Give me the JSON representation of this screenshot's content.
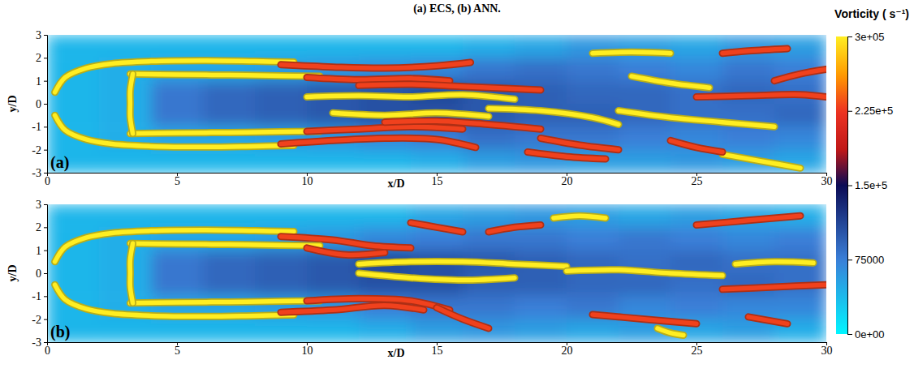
{
  "title": "(a) ECS, (b) ANN.",
  "colorbar": {
    "title": "Vorticity ( s⁻¹)",
    "range": [
      0,
      300000
    ],
    "ticks": [
      {
        "value": 300000,
        "label": "3e+05"
      },
      {
        "value": 225000,
        "label": "2.25e+5"
      },
      {
        "value": 150000,
        "label": "1.5e+5"
      },
      75000,
      {
        "value": 0,
        "label": "0e+00"
      }
    ]
  },
  "chart_data": [
    {
      "type": "heatmap",
      "panel_label": "(a)",
      "x_label": "x/D",
      "y_label": "y/D",
      "xlim": [
        0,
        30
      ],
      "ylim": [
        -3,
        3
      ],
      "xticks": [
        0,
        5,
        10,
        15,
        20,
        25,
        30
      ],
      "yticks": [
        -3,
        -2,
        -1,
        0,
        1,
        2,
        3
      ],
      "x_edges": [
        0,
        2,
        4,
        6,
        8,
        10,
        12,
        14,
        16,
        18,
        20,
        22,
        24,
        26,
        28,
        30
      ],
      "y_edges": [
        3,
        2,
        1,
        0,
        -1,
        -2,
        -3
      ],
      "cells": [
        [
          40000,
          40000,
          40000,
          40000,
          40000,
          40000,
          40000,
          40000,
          45000,
          50000,
          60000,
          55000,
          50000,
          60000,
          55000
        ],
        [
          40000,
          45000,
          50000,
          50000,
          55000,
          60000,
          65000,
          70000,
          80000,
          85000,
          80000,
          75000,
          70000,
          80000,
          75000
        ],
        [
          40000,
          45000,
          80000,
          90000,
          95000,
          100000,
          105000,
          110000,
          100000,
          95000,
          90000,
          90000,
          85000,
          90000,
          85000
        ],
        [
          40000,
          45000,
          80000,
          90000,
          95000,
          100000,
          105000,
          105000,
          100000,
          95000,
          95000,
          90000,
          85000,
          85000,
          90000
        ],
        [
          40000,
          45000,
          50000,
          50000,
          55000,
          60000,
          70000,
          75000,
          85000,
          80000,
          80000,
          75000,
          70000,
          75000,
          70000
        ],
        [
          40000,
          40000,
          40000,
          40000,
          40000,
          40000,
          40000,
          45000,
          55000,
          60000,
          55000,
          55000,
          60000,
          55000,
          50000
        ]
      ],
      "streaks": [
        {
          "value": 300000,
          "x": [
            0.3,
            0.7,
            1.5,
            2.5,
            4,
            6,
            8,
            9.5
          ],
          "y": [
            0.5,
            1.15,
            1.55,
            1.75,
            1.85,
            1.88,
            1.85,
            1.82
          ]
        },
        {
          "value": 300000,
          "x": [
            0.3,
            0.7,
            1.5,
            2.5,
            4,
            6,
            8,
            9.5
          ],
          "y": [
            -0.5,
            -1.15,
            -1.55,
            -1.75,
            -1.85,
            -1.88,
            -1.85,
            -1.82
          ]
        },
        {
          "value": 230000,
          "x": [
            9,
            11,
            13,
            15,
            16.3
          ],
          "y": [
            1.7,
            1.6,
            1.55,
            1.65,
            1.8
          ]
        },
        {
          "value": 230000,
          "x": [
            9,
            11,
            13,
            15,
            16.5
          ],
          "y": [
            -1.75,
            -1.6,
            -1.5,
            -1.55,
            -1.9
          ]
        },
        {
          "value": 300000,
          "x": [
            3.2,
            5,
            7,
            9,
            10.5
          ],
          "y": [
            1.3,
            1.27,
            1.25,
            1.22,
            1.2
          ]
        },
        {
          "value": 300000,
          "x": [
            3.2,
            5,
            7,
            9,
            10.5
          ],
          "y": [
            -1.3,
            -1.27,
            -1.25,
            -1.22,
            -1.2
          ]
        },
        {
          "value": 300000,
          "x": [
            3.3,
            3.2,
            3.2,
            3.2,
            3.3
          ],
          "y": [
            1.3,
            0.6,
            0,
            -0.6,
            -1.3
          ]
        },
        {
          "value": 230000,
          "x": [
            10,
            12,
            14,
            15.5
          ],
          "y": [
            1.15,
            1.05,
            1.1,
            1.0
          ]
        },
        {
          "value": 230000,
          "x": [
            10,
            12,
            14,
            16
          ],
          "y": [
            -1.2,
            -1.1,
            -1.0,
            -1.1
          ]
        },
        {
          "value": 300000,
          "x": [
            10,
            12,
            14,
            16,
            18
          ],
          "y": [
            0.3,
            0.35,
            0.3,
            0.4,
            0.2
          ]
        },
        {
          "value": 300000,
          "x": [
            11,
            13,
            15,
            17
          ],
          "y": [
            -0.4,
            -0.5,
            -0.4,
            -0.55
          ]
        },
        {
          "value": 230000,
          "x": [
            12,
            14,
            16,
            19
          ],
          "y": [
            0.8,
            0.85,
            0.75,
            0.6
          ]
        },
        {
          "value": 230000,
          "x": [
            13,
            15,
            17,
            19
          ],
          "y": [
            -0.8,
            -0.75,
            -0.9,
            -1.1
          ]
        },
        {
          "value": 300000,
          "x": [
            17,
            19,
            21,
            22
          ],
          "y": [
            -0.2,
            -0.3,
            -0.6,
            -0.9
          ]
        },
        {
          "value": 230000,
          "x": [
            18.5,
            20,
            21.5
          ],
          "y": [
            -2.1,
            -2.3,
            -2.4
          ]
        },
        {
          "value": 230000,
          "x": [
            19,
            20.5,
            22
          ],
          "y": [
            -1.5,
            -1.8,
            -2.0
          ]
        },
        {
          "value": 300000,
          "x": [
            21,
            22.5,
            24
          ],
          "y": [
            2.2,
            2.25,
            2.2
          ]
        },
        {
          "value": 230000,
          "x": [
            26,
            27,
            28.5
          ],
          "y": [
            2.2,
            2.3,
            2.4
          ]
        },
        {
          "value": 300000,
          "x": [
            22,
            24,
            26,
            28
          ],
          "y": [
            -0.3,
            -0.6,
            -0.8,
            -1.0
          ]
        },
        {
          "value": 230000,
          "x": [
            25,
            27,
            29,
            30
          ],
          "y": [
            0.3,
            0.35,
            0.4,
            0.3
          ]
        },
        {
          "value": 300000,
          "x": [
            26,
            27.5,
            29
          ],
          "y": [
            -2.2,
            -2.5,
            -2.8
          ]
        },
        {
          "value": 230000,
          "x": [
            24,
            25,
            26
          ],
          "y": [
            -1.6,
            -1.9,
            -2.1
          ]
        },
        {
          "value": 300000,
          "x": [
            22.5,
            24,
            25.5
          ],
          "y": [
            1.2,
            0.9,
            0.7
          ]
        },
        {
          "value": 230000,
          "x": [
            28,
            29,
            30
          ],
          "y": [
            1.0,
            1.3,
            1.5
          ]
        }
      ]
    },
    {
      "type": "heatmap",
      "panel_label": "(b)",
      "x_label": "x/D",
      "y_label": "y/D",
      "xlim": [
        0,
        30
      ],
      "ylim": [
        -3,
        3
      ],
      "xticks": [
        0,
        5,
        10,
        15,
        20,
        25,
        30
      ],
      "yticks": [
        -3,
        -2,
        -1,
        0,
        1,
        2,
        3
      ],
      "x_edges": [
        0,
        2,
        4,
        6,
        8,
        10,
        12,
        14,
        16,
        18,
        20,
        22,
        24,
        26,
        28,
        30
      ],
      "y_edges": [
        3,
        2,
        1,
        0,
        -1,
        -2,
        -3
      ],
      "cells": [
        [
          40000,
          40000,
          40000,
          40000,
          40000,
          40000,
          40000,
          50000,
          55000,
          60000,
          55000,
          50000,
          55000,
          50000,
          45000
        ],
        [
          40000,
          45000,
          50000,
          50000,
          55000,
          60000,
          70000,
          75000,
          80000,
          80000,
          75000,
          80000,
          75000,
          70000,
          75000
        ],
        [
          40000,
          45000,
          80000,
          90000,
          95000,
          100000,
          110000,
          105000,
          100000,
          95000,
          90000,
          85000,
          90000,
          85000,
          85000
        ],
        [
          40000,
          45000,
          80000,
          90000,
          95000,
          100000,
          105000,
          105000,
          95000,
          95000,
          90000,
          90000,
          85000,
          90000,
          85000
        ],
        [
          40000,
          45000,
          50000,
          50000,
          55000,
          60000,
          75000,
          80000,
          80000,
          75000,
          80000,
          70000,
          75000,
          70000,
          70000
        ],
        [
          40000,
          40000,
          40000,
          40000,
          40000,
          40000,
          45000,
          55000,
          60000,
          55000,
          50000,
          55000,
          50000,
          55000,
          45000
        ]
      ],
      "streaks": [
        {
          "value": 300000,
          "x": [
            0.3,
            0.7,
            1.5,
            2.5,
            4,
            6,
            8,
            9.5
          ],
          "y": [
            0.5,
            1.15,
            1.55,
            1.75,
            1.85,
            1.88,
            1.85,
            1.82
          ]
        },
        {
          "value": 300000,
          "x": [
            0.3,
            0.7,
            1.5,
            2.5,
            4,
            6,
            8,
            9.5
          ],
          "y": [
            -0.5,
            -1.15,
            -1.55,
            -1.75,
            -1.85,
            -1.88,
            -1.85,
            -1.82
          ]
        },
        {
          "value": 230000,
          "x": [
            9,
            11,
            12.5,
            14
          ],
          "y": [
            1.6,
            1.45,
            1.2,
            1.1
          ]
        },
        {
          "value": 230000,
          "x": [
            9,
            11,
            13,
            14.5
          ],
          "y": [
            -1.7,
            -1.6,
            -1.4,
            -1.6
          ]
        },
        {
          "value": 300000,
          "x": [
            3.2,
            5,
            7,
            9,
            10.5
          ],
          "y": [
            1.3,
            1.27,
            1.25,
            1.22,
            1.2
          ]
        },
        {
          "value": 300000,
          "x": [
            3.2,
            5,
            7,
            9,
            10.5
          ],
          "y": [
            -1.3,
            -1.27,
            -1.25,
            -1.22,
            -1.2
          ]
        },
        {
          "value": 300000,
          "x": [
            3.3,
            3.2,
            3.2,
            3.2,
            3.3
          ],
          "y": [
            1.3,
            0.6,
            0,
            -0.6,
            -1.3
          ]
        },
        {
          "value": 230000,
          "x": [
            10,
            11.5,
            13
          ],
          "y": [
            1.1,
            0.8,
            0.9
          ]
        },
        {
          "value": 230000,
          "x": [
            10,
            12,
            14,
            15.5
          ],
          "y": [
            -1.2,
            -1.1,
            -1.2,
            -1.6
          ]
        },
        {
          "value": 300000,
          "x": [
            12,
            14,
            16,
            18,
            20
          ],
          "y": [
            0.4,
            0.5,
            0.5,
            0.4,
            0.3
          ]
        },
        {
          "value": 300000,
          "x": [
            12,
            14,
            16,
            18
          ],
          "y": [
            0,
            -0.2,
            -0.3,
            -0.2
          ]
        },
        {
          "value": 230000,
          "x": [
            15,
            16,
            17
          ],
          "y": [
            -1.5,
            -2.0,
            -2.4
          ]
        },
        {
          "value": 230000,
          "x": [
            14,
            15,
            16
          ],
          "y": [
            2.2,
            2.0,
            1.8
          ]
        },
        {
          "value": 300000,
          "x": [
            19.5,
            20.5,
            21.5
          ],
          "y": [
            2.4,
            2.5,
            2.4
          ]
        },
        {
          "value": 230000,
          "x": [
            17,
            18,
            19
          ],
          "y": [
            1.8,
            2.0,
            2.1
          ]
        },
        {
          "value": 300000,
          "x": [
            23.5,
            24,
            24.5
          ],
          "y": [
            -2.4,
            -2.6,
            -2.7
          ]
        },
        {
          "value": 230000,
          "x": [
            21,
            23,
            25
          ],
          "y": [
            -1.8,
            -2.0,
            -2.2
          ]
        },
        {
          "value": 300000,
          "x": [
            20,
            22,
            24,
            26
          ],
          "y": [
            0.1,
            0.15,
            0.0,
            -0.1
          ]
        },
        {
          "value": 230000,
          "x": [
            25,
            27,
            29
          ],
          "y": [
            2.1,
            2.3,
            2.5
          ]
        },
        {
          "value": 230000,
          "x": [
            26,
            28,
            30
          ],
          "y": [
            -0.7,
            -0.6,
            -0.5
          ]
        },
        {
          "value": 300000,
          "x": [
            26.5,
            28,
            29.5
          ],
          "y": [
            0.4,
            0.5,
            0.45
          ]
        },
        {
          "value": 230000,
          "x": [
            27,
            28.5
          ],
          "y": [
            -1.9,
            -2.2
          ]
        }
      ]
    }
  ]
}
